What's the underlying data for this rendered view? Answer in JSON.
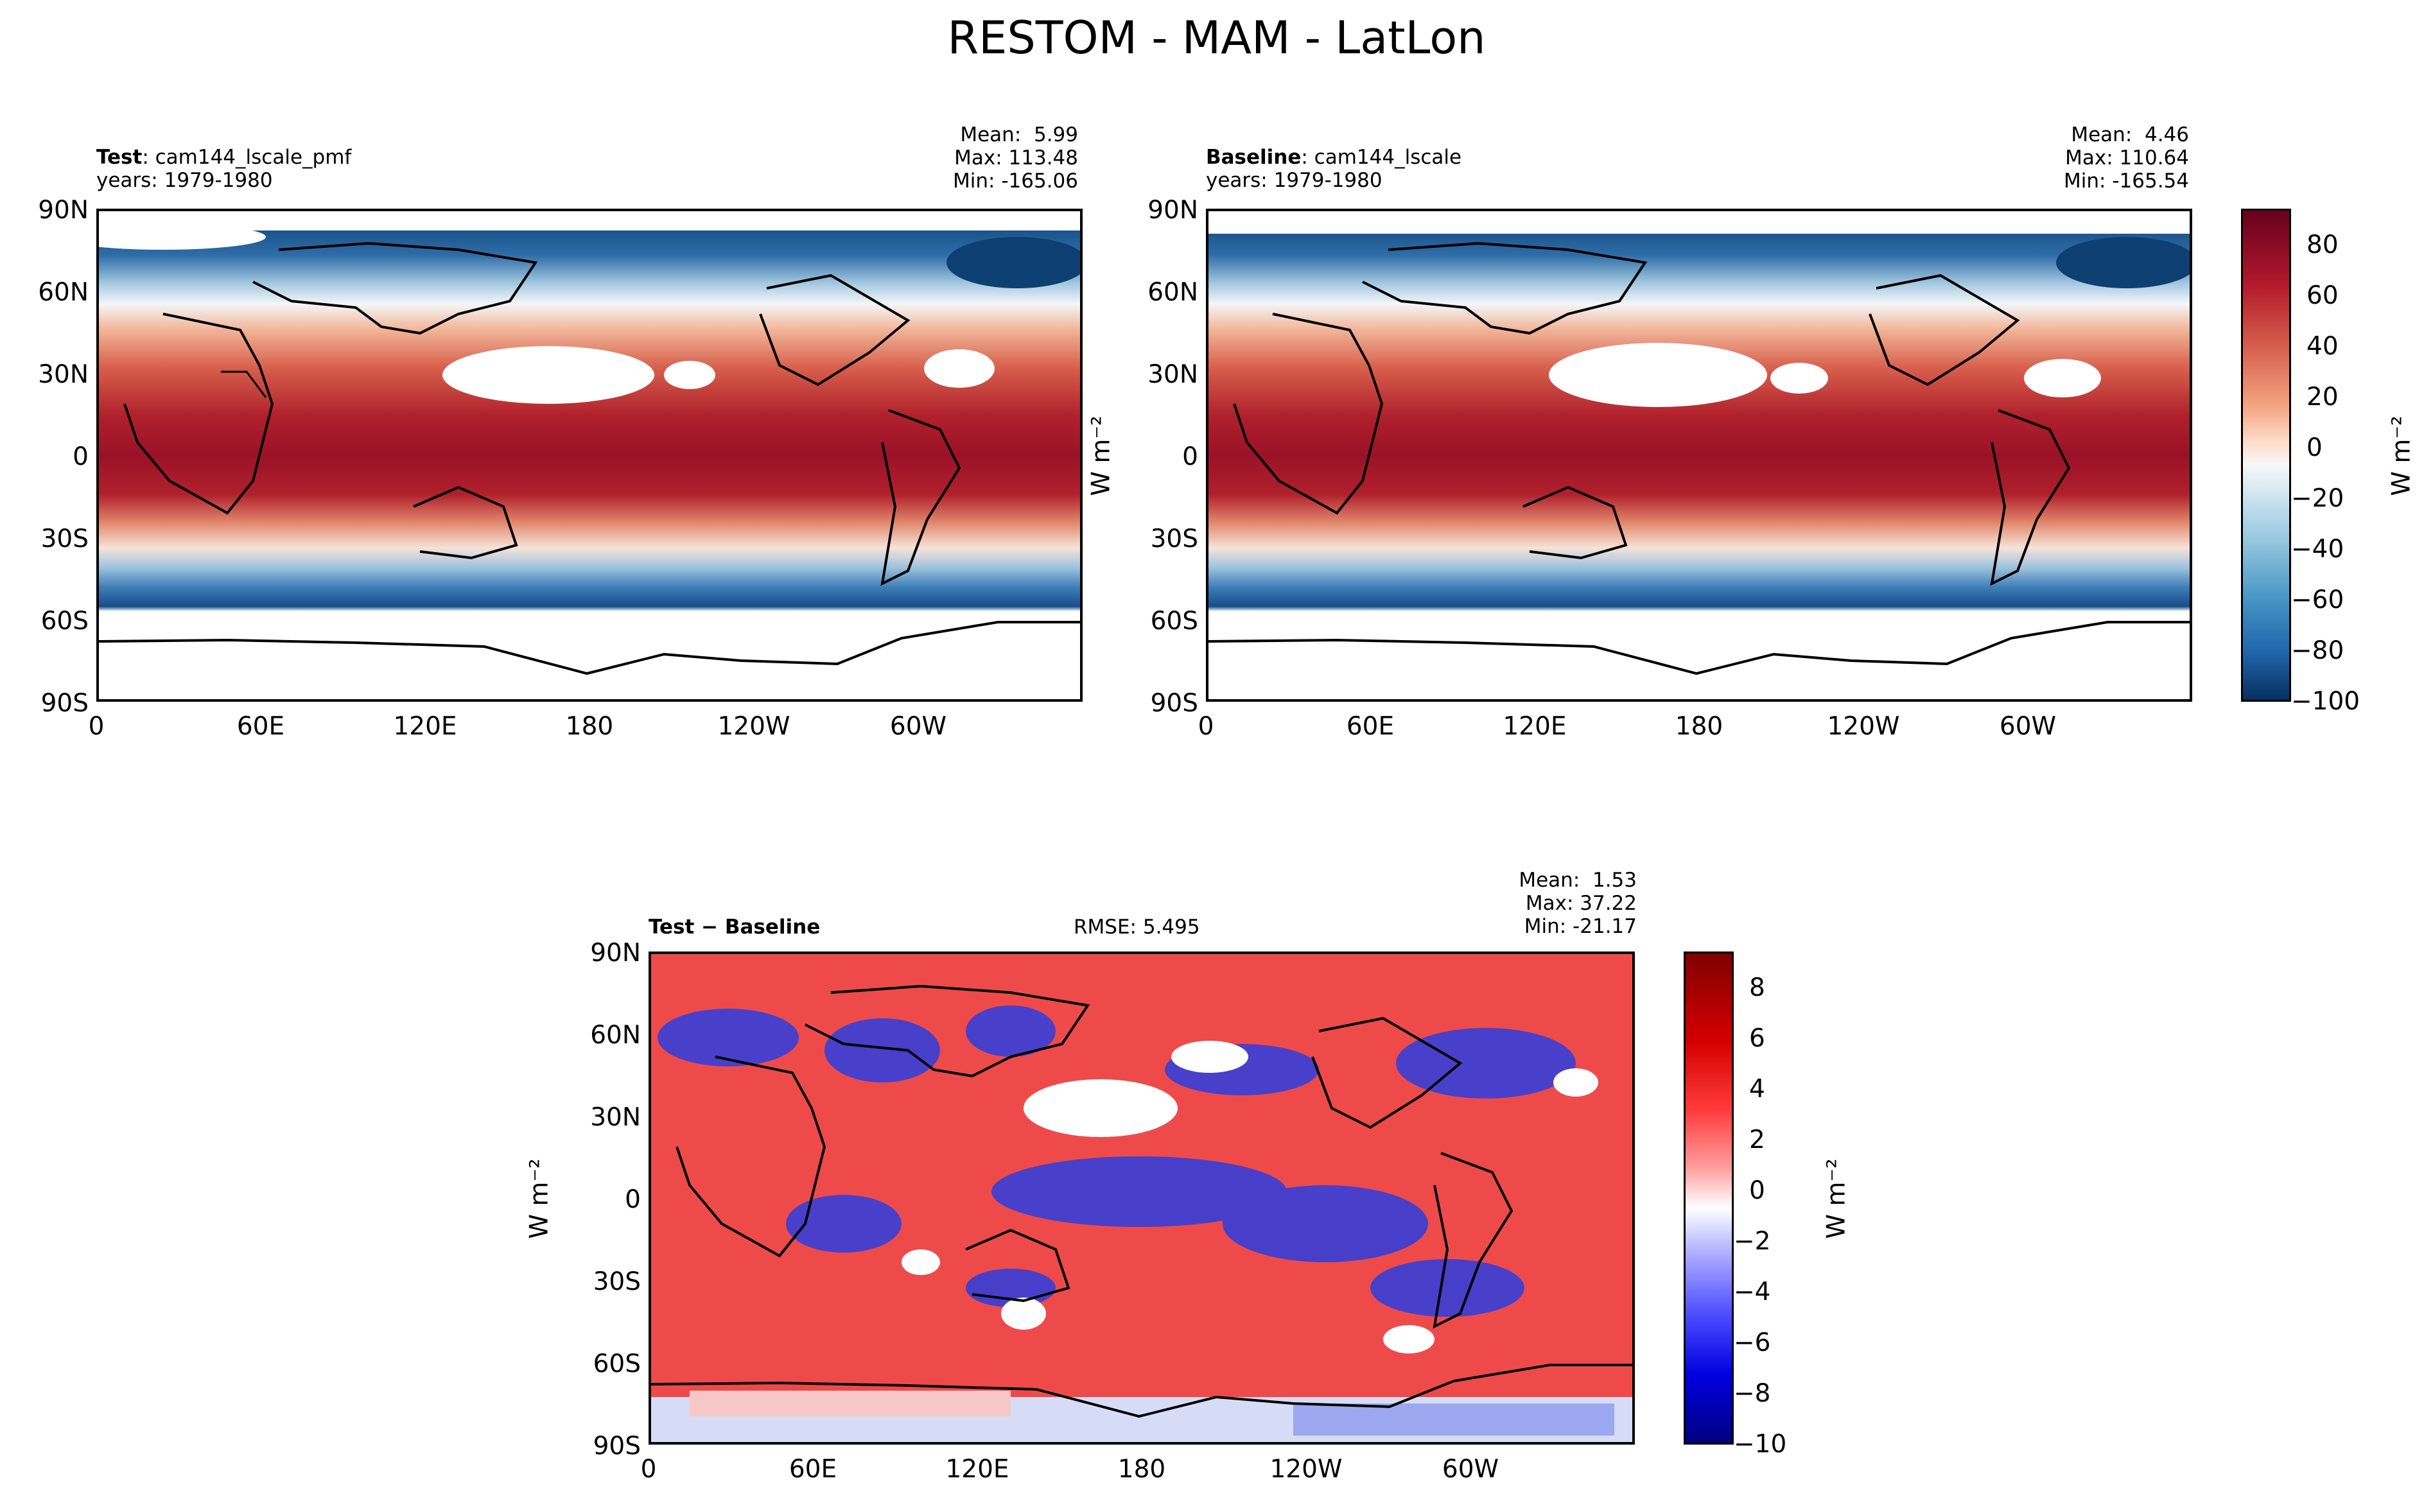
{
  "title": "RESTOM - MAM - LatLon",
  "chart_data": [
    {
      "type": "heatmap",
      "panel": "test",
      "label_bold": "Test",
      "label_rest": ": cam144_lscale_pmf",
      "years": "years: 1979-1980",
      "stats": {
        "mean": "Mean:  5.99",
        "max": "Max: 113.48",
        "min": "Min: -165.06"
      },
      "ylabel": "W m⁻²",
      "x_ticks": [
        "0",
        "60E",
        "120E",
        "180",
        "120W",
        "60W"
      ],
      "y_ticks": [
        "90N",
        "60N",
        "30N",
        "0",
        "30S",
        "60S",
        "90S"
      ]
    },
    {
      "type": "heatmap",
      "panel": "baseline",
      "label_bold": "Baseline",
      "label_rest": ": cam144_lscale",
      "years": "years: 1979-1980",
      "stats": {
        "mean": "Mean:  4.46",
        "max": "Max: 110.64",
        "min": "Min: -165.54"
      },
      "x_ticks": [
        "0",
        "60E",
        "120E",
        "180",
        "120W",
        "60W"
      ],
      "y_ticks": [
        "90N",
        "60N",
        "30N",
        "0",
        "30S",
        "60S",
        "90S"
      ],
      "colorbar": {
        "ticks": [
          "80",
          "60",
          "40",
          "20",
          "0",
          "−20",
          "−40",
          "−60",
          "−80",
          "−100"
        ],
        "range": [
          -100,
          95
        ],
        "unit": "W m⁻²"
      }
    },
    {
      "type": "heatmap",
      "panel": "difference",
      "label_bold": "Test − Baseline",
      "rmse": "RMSE: 5.495",
      "stats": {
        "mean": "Mean:  1.53",
        "max": "Max: 37.22",
        "min": "Min: -21.17"
      },
      "ylabel": "W m⁻²",
      "x_ticks": [
        "0",
        "60E",
        "120E",
        "180",
        "120W",
        "60W"
      ],
      "y_ticks": [
        "90N",
        "60N",
        "30N",
        "0",
        "30S",
        "60S",
        "90S"
      ],
      "colorbar": {
        "ticks": [
          "8",
          "6",
          "4",
          "2",
          "0",
          "−2",
          "−4",
          "−6",
          "−8",
          "−10"
        ],
        "range": [
          -10,
          9.5
        ],
        "unit": "W m⁻²"
      }
    }
  ]
}
